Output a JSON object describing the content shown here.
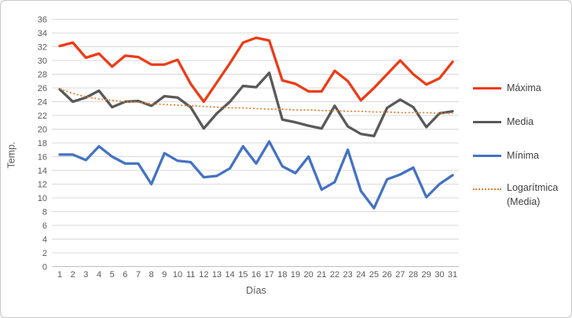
{
  "window": {
    "background": "#ffffff",
    "border_color": "#c9c9c9"
  },
  "chart_data": {
    "type": "line",
    "title": "",
    "xlabel": "Días",
    "ylabel": "Temp.",
    "x": [
      1,
      2,
      3,
      4,
      5,
      6,
      7,
      8,
      9,
      10,
      11,
      12,
      13,
      14,
      15,
      16,
      17,
      18,
      19,
      20,
      21,
      22,
      23,
      24,
      25,
      26,
      27,
      28,
      29,
      30,
      31
    ],
    "ylim": [
      0,
      36
    ],
    "ytick_step": 2,
    "grid": true,
    "legend_position": "right",
    "gridline_color": "#d9d9d9",
    "axis_line_color": "#bfbfbf",
    "axis_text_color": "#595959",
    "series": [
      {
        "name": "Máxima",
        "color": "#ed3b15",
        "style": "solid",
        "values": [
          32.1,
          32.6,
          30.4,
          31,
          29.1,
          30.7,
          30.5,
          29.4,
          29.4,
          30.1,
          26.6,
          24,
          26.8,
          29.6,
          32.6,
          33.3,
          32.9,
          27.1,
          26.6,
          25.5,
          25.5,
          28.5,
          27,
          24.2,
          26,
          28,
          30,
          28,
          26.5,
          27.4,
          29.8
        ]
      },
      {
        "name": "Media",
        "color": "#595959",
        "style": "solid",
        "values": [
          25.8,
          24,
          24.6,
          25.6,
          23.2,
          24,
          24.1,
          23.4,
          24.8,
          24.6,
          23.2,
          20.1,
          22.3,
          24,
          26.3,
          26.1,
          28.2,
          21.4,
          21,
          20.5,
          20.1,
          23.4,
          20.4,
          19.3,
          19,
          23.1,
          24.3,
          23.2,
          20.3,
          22.3,
          22.6
        ]
      },
      {
        "name": "Mínima",
        "color": "#4472c4",
        "style": "solid",
        "values": [
          16.3,
          16.3,
          15.5,
          17.5,
          16,
          15,
          15,
          12,
          16.5,
          15.4,
          15.2,
          13,
          13.2,
          14.3,
          17.5,
          15,
          18.2,
          14.6,
          13.6,
          16,
          11.2,
          12.3,
          17,
          11,
          8.5,
          12.7,
          13.4,
          14.4,
          10.1,
          12,
          13.3
        ]
      },
      {
        "name": "Logarítmica (Media)",
        "color": "#ed7d31",
        "style": "dotted",
        "values": [
          25.9,
          25.2,
          24.7,
          24.4,
          24.2,
          24,
          23.9,
          23.7,
          23.6,
          23.5,
          23.4,
          23.3,
          23.2,
          23.1,
          23.1,
          23,
          22.9,
          22.9,
          22.8,
          22.8,
          22.7,
          22.7,
          22.6,
          22.6,
          22.5,
          22.5,
          22.4,
          22.4,
          22.4,
          22.3,
          22.3
        ]
      }
    ]
  }
}
